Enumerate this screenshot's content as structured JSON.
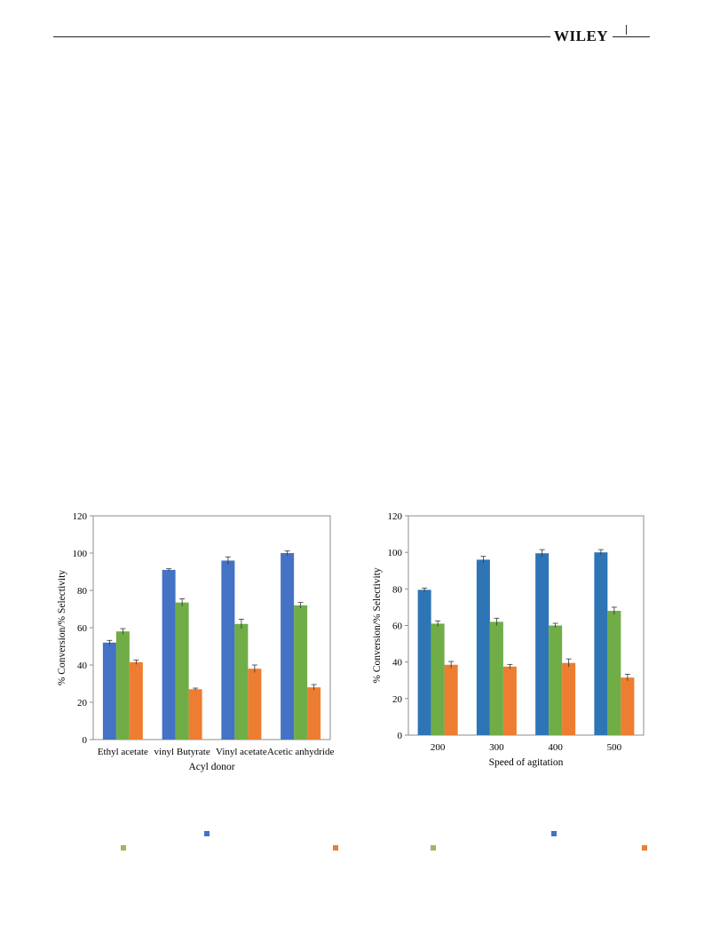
{
  "header": {
    "publisher": "WILEY"
  },
  "colors": {
    "conversion": "#4472c4",
    "selectivity_a": "#70ad47",
    "selectivity_b": "#ed7d31"
  },
  "legend_markers": [
    {
      "name": "legend-marker-left-1",
      "color": "#4472c4"
    },
    {
      "name": "legend-marker-left-2",
      "color": "#9bbb59"
    },
    {
      "name": "legend-marker-left-3",
      "color": "#ed7d31"
    },
    {
      "name": "legend-marker-right-1",
      "color": "#4472c4"
    },
    {
      "name": "legend-marker-right-2",
      "color": "#9bbb59"
    },
    {
      "name": "legend-marker-right-3",
      "color": "#ed7d31"
    }
  ],
  "chart_data": [
    {
      "type": "bar",
      "xlabel": "Acyl donor",
      "ylabel": "% Conversion/% Selectivity",
      "ylim": [
        0,
        120
      ],
      "yticks": [
        0,
        20,
        40,
        60,
        80,
        100,
        120
      ],
      "grid": false,
      "categories": [
        "Ethyl acetate",
        "vinyl Butyrate",
        "Vinyl acetate",
        "Acetic anhydride"
      ],
      "series": [
        {
          "values": [
            52,
            91,
            96,
            100
          ],
          "errors": [
            1.2,
            0.6,
            2,
            1.2
          ],
          "color": "#4472c4"
        },
        {
          "values": [
            58,
            73.5,
            62,
            72
          ],
          "errors": [
            1.5,
            2,
            2.5,
            1.5
          ],
          "color": "#70ad47"
        },
        {
          "values": [
            41.5,
            27,
            38,
            28
          ],
          "errors": [
            1.2,
            0.6,
            2,
            1.5
          ],
          "color": "#ed7d31"
        }
      ]
    },
    {
      "type": "bar",
      "xlabel": "Speed of agitation",
      "ylabel": "% Conversion/% Selectivity",
      "ylim": [
        0,
        120
      ],
      "yticks": [
        0,
        20,
        40,
        60,
        80,
        100,
        120
      ],
      "grid": false,
      "categories": [
        "200",
        "300",
        "400",
        "500"
      ],
      "series": [
        {
          "values": [
            79.5,
            96,
            99.5,
            100
          ],
          "errors": [
            1,
            1.8,
            2,
            1.5
          ],
          "color": "#2e75b6"
        },
        {
          "values": [
            61,
            62,
            60,
            68
          ],
          "errors": [
            1.5,
            2,
            1.2,
            2
          ],
          "color": "#70ad47"
        },
        {
          "values": [
            38.5,
            37.5,
            39.5,
            31.5
          ],
          "errors": [
            1.8,
            1.2,
            2.2,
            1.8
          ],
          "color": "#ed7d31"
        }
      ]
    }
  ]
}
